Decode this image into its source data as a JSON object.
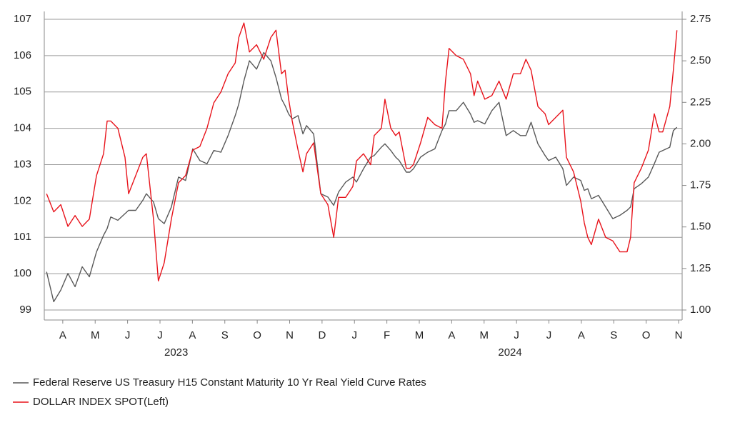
{
  "chart_data": {
    "type": "line",
    "x": [
      0,
      0.22,
      0.44,
      0.66,
      0.88,
      1.1,
      1.32,
      1.54,
      1.76,
      1.87,
      1.98,
      2.2,
      2.42,
      2.53,
      2.75,
      2.97,
      3.08,
      3.3,
      3.45,
      3.63,
      3.85,
      4.07,
      4.29,
      4.51,
      4.73,
      4.95,
      5.16,
      5.38,
      5.6,
      5.82,
      5.93,
      6.09,
      6.26,
      6.48,
      6.7,
      6.92,
      7.08,
      7.25,
      7.36,
      7.47,
      7.58,
      7.76,
      7.91,
      8.02,
      8.24,
      8.46,
      8.68,
      8.86,
      9.01,
      9.23,
      9.45,
      9.56,
      9.78,
      10.0,
      10.11,
      10.33,
      10.44,
      10.62,
      10.77,
      10.88,
      11.1,
      11.21,
      11.32,
      11.54,
      11.76,
      11.98,
      12.2,
      12.31,
      12.42,
      12.64,
      12.86,
      13.08,
      13.19,
      13.3,
      13.52,
      13.74,
      13.96,
      14.18,
      14.4,
      14.62,
      14.79,
      14.95,
      15.16,
      15.38,
      15.49,
      15.71,
      15.93,
      16.04,
      16.26,
      16.48,
      16.59,
      16.7,
      16.81,
      17.03,
      17.25,
      17.47,
      17.69,
      17.91,
      18.02,
      18.13,
      18.35,
      18.57,
      18.75,
      18.9,
      19.01,
      19.23,
      19.34,
      19.45
    ],
    "xlim": [
      -0.07,
      19.5
    ],
    "xticks": [
      {
        "value": 0.5,
        "label": "A"
      },
      {
        "value": 1.5,
        "label": "M"
      },
      {
        "value": 2.5,
        "label": "J"
      },
      {
        "value": 3.5,
        "label": "J"
      },
      {
        "value": 4.5,
        "label": "A"
      },
      {
        "value": 5.5,
        "label": "S"
      },
      {
        "value": 6.5,
        "label": "O"
      },
      {
        "value": 7.5,
        "label": "N"
      },
      {
        "value": 8.5,
        "label": "D"
      },
      {
        "value": 9.5,
        "label": "J"
      },
      {
        "value": 10.5,
        "label": "F"
      },
      {
        "value": 11.5,
        "label": "M"
      },
      {
        "value": 12.5,
        "label": "A"
      },
      {
        "value": 13.5,
        "label": "M"
      },
      {
        "value": 14.5,
        "label": "J"
      },
      {
        "value": 15.5,
        "label": "J"
      },
      {
        "value": 16.5,
        "label": "A"
      },
      {
        "value": 17.5,
        "label": "S"
      },
      {
        "value": 18.5,
        "label": "O"
      },
      {
        "value": 19.5,
        "label": "N"
      }
    ],
    "x_year_labels": [
      {
        "value": 4.0,
        "label": "2023"
      },
      {
        "value": 14.3,
        "label": "2024"
      }
    ],
    "ylim": [
      99,
      107
    ],
    "yticks": [
      99,
      100,
      101,
      102,
      103,
      104,
      105,
      106,
      107
    ],
    "y2lim": [
      1.0,
      2.75
    ],
    "y2ticks": [
      {
        "value": 1.0,
        "label": "1.00"
      },
      {
        "value": 1.25,
        "label": "1.25"
      },
      {
        "value": 1.5,
        "label": "1.50"
      },
      {
        "value": 1.75,
        "label": "1.75"
      },
      {
        "value": 2.0,
        "label": "2.00"
      },
      {
        "value": 2.25,
        "label": "2.25"
      },
      {
        "value": 2.5,
        "label": "2.50"
      },
      {
        "value": 2.75,
        "label": "2.75"
      }
    ],
    "grid": true,
    "legend": "bottom-left",
    "series": [
      {
        "name": "Federal Reserve US Treasury H15 Constant Maturity 10 Yr Real Yield Curve Rates",
        "color": "#595959",
        "axis": "y2",
        "values": [
          1.23,
          1.05,
          1.12,
          1.22,
          1.14,
          1.26,
          1.2,
          1.35,
          1.45,
          1.49,
          1.56,
          1.54,
          1.58,
          1.6,
          1.6,
          1.66,
          1.7,
          1.65,
          1.55,
          1.52,
          1.62,
          1.8,
          1.78,
          1.97,
          1.9,
          1.88,
          1.96,
          1.95,
          2.05,
          2.17,
          2.24,
          2.38,
          2.5,
          2.45,
          2.55,
          2.5,
          2.4,
          2.27,
          2.23,
          2.18,
          2.15,
          2.17,
          2.06,
          2.11,
          2.06,
          1.7,
          1.68,
          1.63,
          1.71,
          1.77,
          1.8,
          1.77,
          1.85,
          1.92,
          1.93,
          1.98,
          2.0,
          1.96,
          1.92,
          1.9,
          1.83,
          1.83,
          1.85,
          1.92,
          1.95,
          1.97,
          2.08,
          2.12,
          2.2,
          2.2,
          2.25,
          2.18,
          2.13,
          2.14,
          2.12,
          2.2,
          2.25,
          2.05,
          2.08,
          2.05,
          2.05,
          2.13,
          2.0,
          1.93,
          1.9,
          1.92,
          1.85,
          1.75,
          1.8,
          1.78,
          1.72,
          1.73,
          1.67,
          1.69,
          1.62,
          1.55,
          1.57,
          1.6,
          1.62,
          1.73,
          1.76,
          1.8,
          1.88,
          1.95,
          1.96,
          1.98,
          2.08,
          2.1
        ]
      },
      {
        "name": "DOLLAR INDEX SPOT(Left)",
        "color": "#e8141c",
        "axis": "y",
        "values": [
          102.2,
          101.7,
          101.9,
          101.3,
          101.6,
          101.3,
          101.5,
          102.7,
          103.3,
          104.2,
          104.2,
          104.0,
          103.2,
          102.2,
          102.7,
          103.2,
          103.3,
          101.5,
          99.8,
          100.3,
          101.5,
          102.5,
          102.7,
          103.4,
          103.5,
          104.0,
          104.7,
          105.0,
          105.5,
          105.8,
          106.5,
          106.9,
          106.1,
          106.3,
          105.9,
          106.5,
          106.7,
          105.5,
          105.6,
          104.8,
          104.2,
          103.4,
          102.8,
          103.3,
          103.6,
          102.2,
          101.9,
          101.0,
          102.1,
          102.1,
          102.4,
          103.1,
          103.3,
          103.0,
          103.8,
          104.0,
          104.8,
          104.0,
          103.8,
          103.9,
          102.9,
          102.9,
          103.0,
          103.6,
          104.3,
          104.1,
          104.0,
          105.3,
          106.2,
          106.0,
          105.9,
          105.5,
          104.9,
          105.3,
          104.8,
          104.9,
          105.3,
          104.8,
          105.5,
          105.5,
          105.9,
          105.6,
          104.6,
          104.4,
          104.1,
          104.3,
          104.5,
          103.2,
          102.8,
          102.0,
          101.4,
          101.0,
          100.8,
          101.5,
          101.0,
          100.9,
          100.6,
          100.6,
          101.0,
          102.5,
          102.9,
          103.4,
          104.4,
          103.9,
          103.9,
          104.6,
          105.6,
          106.7
        ]
      }
    ]
  }
}
